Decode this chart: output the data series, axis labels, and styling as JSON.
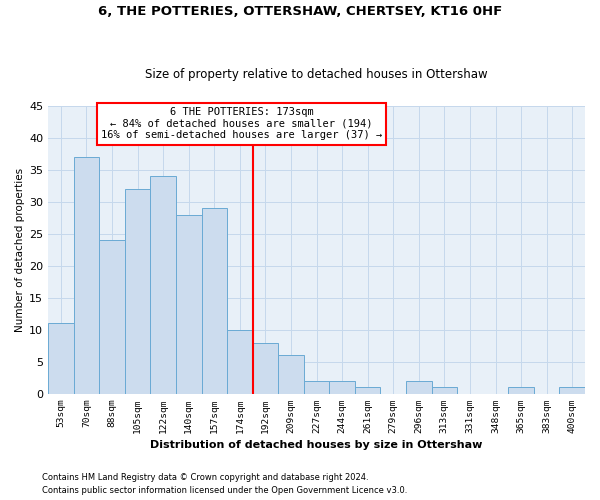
{
  "title": "6, THE POTTERIES, OTTERSHAW, CHERTSEY, KT16 0HF",
  "subtitle": "Size of property relative to detached houses in Ottershaw",
  "xlabel": "Distribution of detached houses by size in Ottershaw",
  "ylabel": "Number of detached properties",
  "bar_labels": [
    "53sqm",
    "70sqm",
    "88sqm",
    "105sqm",
    "122sqm",
    "140sqm",
    "157sqm",
    "174sqm",
    "192sqm",
    "209sqm",
    "227sqm",
    "244sqm",
    "261sqm",
    "279sqm",
    "296sqm",
    "313sqm",
    "331sqm",
    "348sqm",
    "365sqm",
    "383sqm",
    "400sqm"
  ],
  "bar_values": [
    11,
    37,
    24,
    32,
    34,
    28,
    29,
    10,
    8,
    6,
    2,
    2,
    1,
    0,
    2,
    1,
    0,
    0,
    1,
    0,
    1
  ],
  "bar_color": "#ccdcee",
  "bar_edge_color": "#6aaad4",
  "vline_color": "red",
  "grid_color": "#c5d8ec",
  "background_color": "#e8f0f8",
  "footer_line1": "Contains HM Land Registry data © Crown copyright and database right 2024.",
  "footer_line2": "Contains public sector information licensed under the Open Government Licence v3.0.",
  "annotation_line1": "6 THE POTTERIES: 173sqm",
  "annotation_line2": "← 84% of detached houses are smaller (194)",
  "annotation_line3": "16% of semi-detached houses are larger (37) →",
  "ylim": [
    0,
    45
  ],
  "yticks": [
    0,
    5,
    10,
    15,
    20,
    25,
    30,
    35,
    40,
    45
  ],
  "vline_x_index": 7.5
}
